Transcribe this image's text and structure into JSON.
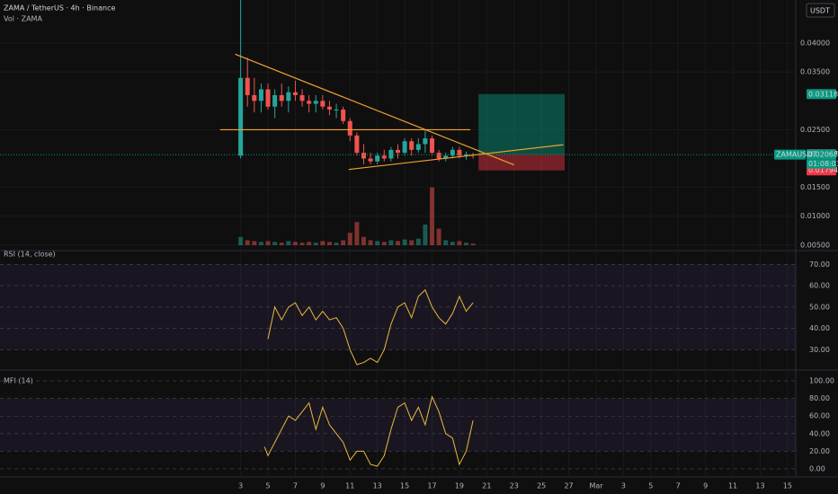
{
  "chart_data": [
    {
      "type": "candlestick",
      "title": "ZAMA / TetherUS · 4h · Binance",
      "subtitle": "Vol · ZAMA",
      "currency": "USDT",
      "symbol": "ZAMAUSDT",
      "countdown": "01:08:03",
      "up_color": "#26a69a",
      "down_color": "#ef5350",
      "x": [
        3,
        3.5,
        4,
        4.5,
        5,
        5.5,
        6,
        6.5,
        7,
        7.5,
        8,
        8.5,
        9,
        9.5,
        10,
        10.5,
        11,
        11.5,
        12,
        12.5,
        13,
        13.5,
        14,
        14.5,
        15,
        15.5,
        16,
        16.5,
        17,
        17.5,
        18,
        18.5,
        19,
        19.5,
        20
      ],
      "open": [
        0.0205,
        0.034,
        0.031,
        0.03,
        0.032,
        0.029,
        0.031,
        0.03,
        0.0315,
        0.031,
        0.03,
        0.0295,
        0.03,
        0.029,
        0.0285,
        0.0285,
        0.0265,
        0.024,
        0.021,
        0.02,
        0.0195,
        0.0205,
        0.02,
        0.0215,
        0.021,
        0.023,
        0.0215,
        0.0225,
        0.0235,
        0.021,
        0.02,
        0.0205,
        0.0215,
        0.0205,
        0.0207
      ],
      "high": [
        0.0475,
        0.0375,
        0.034,
        0.033,
        0.033,
        0.032,
        0.033,
        0.0325,
        0.0335,
        0.032,
        0.031,
        0.031,
        0.031,
        0.03,
        0.0295,
        0.029,
        0.027,
        0.0245,
        0.0225,
        0.021,
        0.021,
        0.0215,
        0.022,
        0.0225,
        0.0235,
        0.0235,
        0.0235,
        0.025,
        0.024,
        0.0215,
        0.021,
        0.022,
        0.022,
        0.0212,
        0.021
      ],
      "low": [
        0.02,
        0.029,
        0.028,
        0.028,
        0.0285,
        0.027,
        0.029,
        0.028,
        0.03,
        0.029,
        0.028,
        0.028,
        0.0285,
        0.0275,
        0.027,
        0.026,
        0.023,
        0.0205,
        0.019,
        0.019,
        0.019,
        0.0195,
        0.0195,
        0.02,
        0.0205,
        0.0205,
        0.021,
        0.021,
        0.0205,
        0.0195,
        0.0195,
        0.02,
        0.02,
        0.0198,
        0.02
      ],
      "close": [
        0.034,
        0.031,
        0.03,
        0.032,
        0.029,
        0.031,
        0.03,
        0.0315,
        0.031,
        0.03,
        0.0295,
        0.03,
        0.029,
        0.0285,
        0.0285,
        0.0265,
        0.024,
        0.021,
        0.02,
        0.0195,
        0.0205,
        0.02,
        0.0215,
        0.021,
        0.023,
        0.0215,
        0.0225,
        0.0235,
        0.021,
        0.02,
        0.0205,
        0.0215,
        0.0205,
        0.0207,
        0.02068
      ],
      "volume": [
        10,
        6,
        5,
        4,
        5,
        4,
        3,
        5,
        4,
        3,
        4,
        3,
        5,
        4,
        3,
        6,
        15,
        28,
        10,
        6,
        5,
        4,
        6,
        5,
        7,
        6,
        8,
        25,
        70,
        20,
        6,
        4,
        5,
        3,
        2
      ],
      "volume_lim": [
        0,
        100
      ],
      "ylim": [
        0.0045,
        0.0475
      ],
      "yticks": [
        {
          "value": 0.005,
          "label": "0.00500"
        },
        {
          "value": 0.01,
          "label": "0.01000"
        },
        {
          "value": 0.015,
          "label": "0.01500"
        },
        {
          "value": 0.025,
          "label": "0.02500"
        },
        {
          "value": 0.035,
          "label": "0.03500"
        },
        {
          "value": 0.04,
          "label": "0.04000"
        }
      ],
      "xlim": [
        -14.6,
        43.6
      ],
      "xticks": [
        3,
        5,
        7,
        9,
        11,
        13,
        15,
        17,
        19,
        21,
        23,
        25,
        27,
        {
          "value": 29,
          "label": "Mar"
        },
        {
          "value": 31,
          "label": "3"
        },
        {
          "value": 33,
          "label": "5"
        },
        {
          "value": 35,
          "label": "7"
        },
        {
          "value": 37,
          "label": "9"
        },
        {
          "value": 39,
          "label": "11"
        },
        {
          "value": 41,
          "label": "13"
        },
        {
          "value": 43,
          "label": "15"
        }
      ],
      "trendlines": [
        {
          "x": [
            2.6,
            23
          ],
          "y": [
            0.0381,
            0.0189
          ],
          "color": "#f0a030"
        },
        {
          "x": [
            1.5,
            19.8
          ],
          "y": [
            0.025,
            0.025
          ],
          "color": "#f0a030"
        },
        {
          "x": [
            10.9,
            26.6
          ],
          "y": [
            0.0181,
            0.0224
          ],
          "color": "#f0a030"
        }
      ],
      "position": {
        "x": [
          20.4,
          26.7
        ],
        "entry": 0.02068,
        "target": 0.03118,
        "stop": 0.01794
      },
      "price_labels": [
        {
          "value": 0.03118,
          "label": "0.03118",
          "color": "#089981"
        },
        {
          "value": 0.02077,
          "label": "0.02077",
          "color": "#6a6d78"
        },
        {
          "value": 0.02068,
          "label": "0.02068",
          "color": "#089981"
        },
        {
          "value": 0.01794,
          "label": "0.01794",
          "color": "#f23645"
        }
      ]
    },
    {
      "type": "line",
      "title": "RSI (14, close)",
      "color": "#e8b840",
      "x": [
        5,
        5.5,
        6,
        6.5,
        7,
        7.5,
        8,
        8.5,
        9,
        9.5,
        10,
        10.5,
        11,
        11.5,
        12,
        12.5,
        13,
        13.5,
        14,
        14.5,
        15,
        15.5,
        16,
        16.5,
        17,
        17.5,
        18,
        18.5,
        19,
        19.5,
        20
      ],
      "values": [
        35,
        50,
        44,
        50,
        52,
        46,
        50,
        44,
        48,
        44,
        45,
        40,
        30,
        23,
        24,
        26,
        24,
        30,
        42,
        50,
        52,
        45,
        55,
        58,
        50,
        45,
        42,
        47,
        55,
        48,
        52
      ],
      "band": [
        30,
        70
      ],
      "ylim": [
        21.3,
        75.2
      ],
      "yticks": [
        {
          "value": 30,
          "label": "30.00"
        },
        {
          "value": 40,
          "label": "40.00"
        },
        {
          "value": 50,
          "label": "50.00"
        },
        {
          "value": 60,
          "label": "60.00"
        },
        {
          "value": 70,
          "label": "70.00"
        }
      ]
    },
    {
      "type": "line",
      "title": "MFI (14)",
      "color": "#e8b840",
      "x": [
        4.75,
        5,
        5.5,
        6,
        6.5,
        7,
        7.5,
        8,
        8.5,
        9,
        9.5,
        10,
        10.5,
        11,
        11.5,
        12,
        12.5,
        13,
        13.5,
        14,
        14.5,
        15,
        15.5,
        16,
        16.5,
        17,
        17.5,
        18,
        18.5,
        19,
        19.5,
        20
      ],
      "values": [
        25,
        15,
        30,
        45,
        60,
        55,
        65,
        75,
        45,
        70,
        50,
        40,
        30,
        10,
        20,
        20,
        5,
        3,
        15,
        45,
        70,
        75,
        55,
        70,
        50,
        82,
        65,
        40,
        35,
        5,
        20,
        55
      ],
      "band": [
        20,
        80
      ],
      "ylim": [
        -8.2,
        110.3
      ],
      "yticks": [
        {
          "value": 0,
          "label": "0.00"
        },
        {
          "value": 20,
          "label": "20.00"
        },
        {
          "value": 40,
          "label": "40.00"
        },
        {
          "value": 60,
          "label": "60.00"
        },
        {
          "value": 80,
          "label": "80.00"
        },
        {
          "value": 100,
          "label": "100.00"
        }
      ]
    }
  ]
}
